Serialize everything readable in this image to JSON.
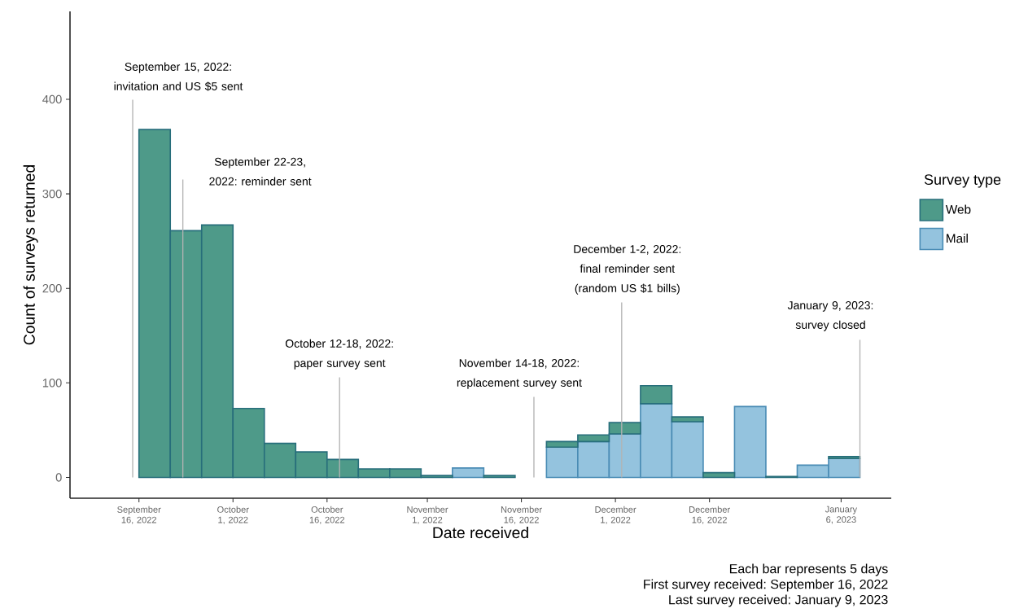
{
  "chart_data": {
    "type": "bar",
    "stacked": true,
    "xlabel": "Date received",
    "ylabel": "Count of surveys returned",
    "legend_title": "Survey type",
    "legend": "right",
    "x": [
      "2022-09-13T12:00",
      "2022-09-18T12:00",
      "2022-09-23T12:00",
      "2022-09-28T12:00",
      "2022-10-03T12:00",
      "2022-10-08T12:00",
      "2022-10-13T12:00",
      "2022-10-18T12:00",
      "2022-10-23T12:00",
      "2022-10-28T12:00",
      "2022-11-02T12:00",
      "2022-11-07T12:00",
      "2022-11-12T12:00",
      "2022-11-17T12:00",
      "2022-11-22T12:00",
      "2022-11-27T12:00",
      "2022-12-02T12:00",
      "2022-12-07T12:00",
      "2022-12-12T12:00",
      "2022-12-17T12:00",
      "2022-12-22T12:00",
      "2022-12-27T12:00",
      "2023-01-01T12:00",
      "2023-01-06T12:00"
    ],
    "series": [
      {
        "name": "Mail",
        "color": "#94c3de",
        "values": [
          0,
          0,
          0,
          0,
          0,
          0,
          0,
          0,
          0,
          0,
          0,
          10,
          0,
          0,
          32,
          38,
          46,
          78,
          59,
          0,
          75,
          0,
          13,
          20
        ]
      },
      {
        "name": "Web",
        "color": "#4e9a89",
        "values": [
          0,
          368,
          261,
          267,
          73,
          36,
          27,
          19,
          9,
          9,
          2,
          0,
          2,
          0,
          6,
          7,
          12,
          19,
          5,
          5,
          0,
          1,
          0,
          2
        ]
      }
    ],
    "xlim": [
      "2022-09-05",
      "2023-01-14"
    ],
    "xticks": [
      {
        "value": "2022-09-16",
        "label": "September 16, 2022"
      },
      {
        "value": "2022-10-01",
        "label": "October 1, 2022"
      },
      {
        "value": "2022-10-16",
        "label": "October 16, 2022"
      },
      {
        "value": "2022-11-01",
        "label": "November 1, 2022"
      },
      {
        "value": "2022-11-16",
        "label": "November 16, 2022"
      },
      {
        "value": "2022-12-01",
        "label": "December 1, 2022"
      },
      {
        "value": "2022-12-16",
        "label": "December 16, 2022"
      },
      {
        "value": "2023-01-06",
        "label": "January 6, 2023"
      }
    ],
    "ylim": [
      -22,
      493
    ],
    "yticks": [
      0,
      100,
      200,
      300,
      400
    ],
    "ref_lines": [
      {
        "axis": "x",
        "value": "2022-09-15",
        "label": "September 15, 2022: invitation and US $5 sent",
        "color": "#b3b3b3"
      },
      {
        "axis": "x",
        "value": "2022-09-23",
        "label": "September 22-23, 2022: reminder sent",
        "color": "#b3b3b3"
      },
      {
        "axis": "x",
        "value": "2022-10-18",
        "label": "October 12-18, 2022: paper survey sent",
        "color": "#b3b3b3"
      },
      {
        "axis": "x",
        "value": "2022-11-18",
        "label": "November 14-18, 2022: replacement survey sent",
        "color": "#b3b3b3"
      },
      {
        "axis": "x",
        "value": "2022-12-02",
        "label": "December 1-2, 2022: final reminder sent (random US $1 bills)",
        "color": "#b3b3b3"
      },
      {
        "axis": "x",
        "value": "2023-01-09",
        "label": "January 9, 2023: survey closed",
        "color": "#b3b3b3"
      }
    ],
    "annotations": [
      "Each bar represents 5 days",
      "First survey received: September 16, 2022",
      "Last survey received: January 9, 2023"
    ]
  }
}
